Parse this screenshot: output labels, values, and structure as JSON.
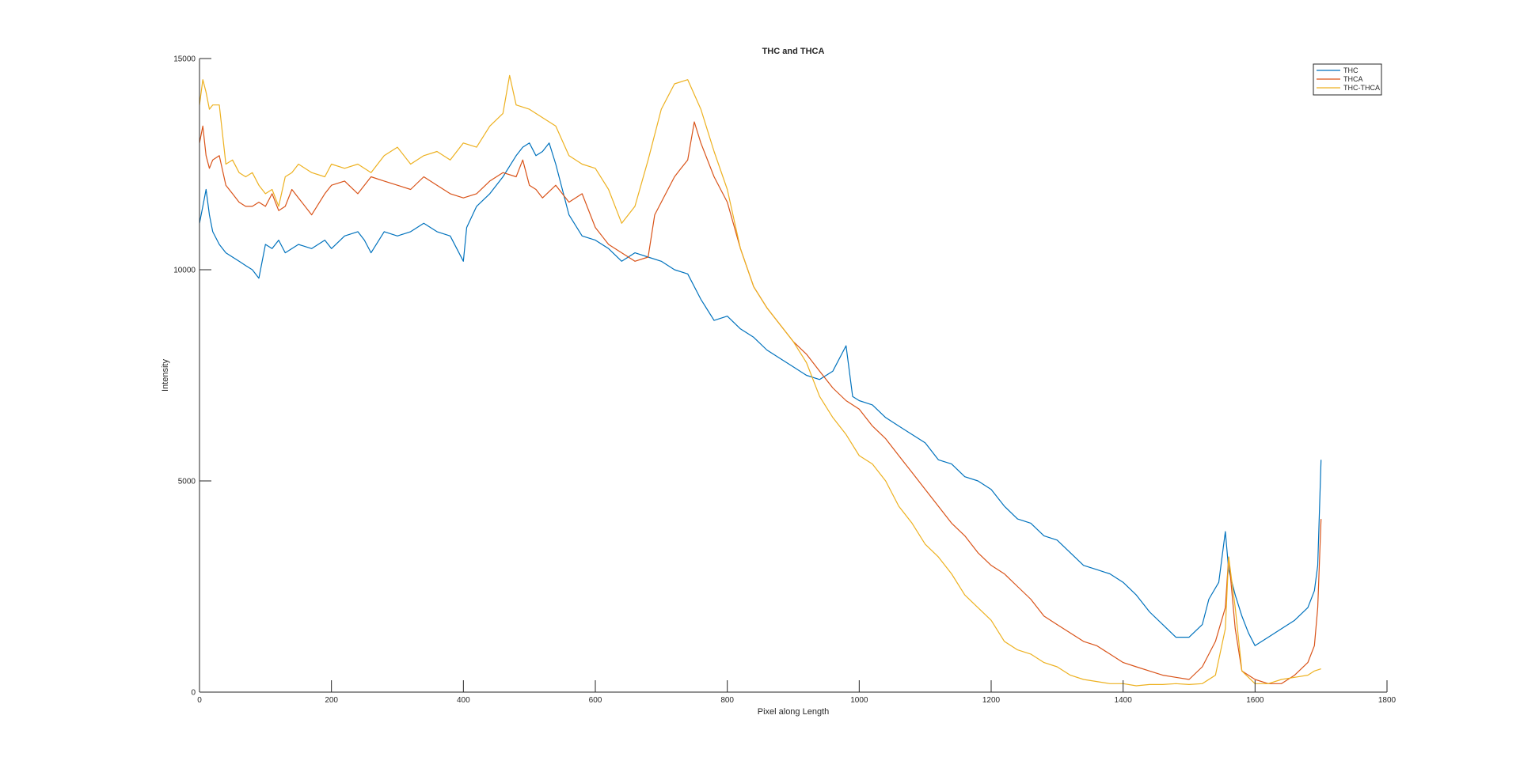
{
  "chart_data": {
    "type": "line",
    "title": "THC and THCA",
    "xlabel": "Pixel along Length",
    "ylabel": "Intensity",
    "xlim": [
      0,
      1800
    ],
    "ylim": [
      0,
      15000
    ],
    "xticks": [
      0,
      200,
      400,
      600,
      800,
      1000,
      1200,
      1400,
      1600,
      1800
    ],
    "yticks": [
      0,
      5000,
      10000,
      15000
    ],
    "grid": false,
    "legend": {
      "position": "top-right"
    },
    "series": [
      {
        "name": "THC",
        "color": "#0072BD",
        "x": [
          0,
          5,
          10,
          15,
          20,
          30,
          40,
          50,
          60,
          70,
          80,
          90,
          100,
          110,
          120,
          130,
          150,
          170,
          190,
          200,
          220,
          240,
          250,
          260,
          280,
          300,
          320,
          340,
          360,
          380,
          400,
          405,
          420,
          440,
          460,
          480,
          490,
          500,
          510,
          520,
          530,
          540,
          560,
          580,
          600,
          620,
          640,
          660,
          680,
          700,
          720,
          740,
          760,
          780,
          800,
          820,
          840,
          860,
          880,
          900,
          920,
          940,
          960,
          980,
          990,
          1000,
          1020,
          1040,
          1060,
          1080,
          1100,
          1120,
          1140,
          1160,
          1180,
          1200,
          1220,
          1240,
          1260,
          1280,
          1300,
          1320,
          1340,
          1360,
          1380,
          1400,
          1420,
          1440,
          1460,
          1480,
          1500,
          1520,
          1530,
          1545,
          1555,
          1560,
          1570,
          1580,
          1590,
          1600,
          1620,
          1640,
          1660,
          1680,
          1690,
          1695,
          1700
        ],
        "y": [
          11100,
          11500,
          11900,
          11300,
          10900,
          10600,
          10400,
          10300,
          10200,
          10100,
          10000,
          9800,
          10600,
          10500,
          10700,
          10400,
          10600,
          10500,
          10700,
          10500,
          10800,
          10900,
          10700,
          10400,
          10900,
          10800,
          10900,
          11100,
          10900,
          10800,
          10200,
          11000,
          11500,
          11800,
          12200,
          12700,
          12900,
          13000,
          12700,
          12800,
          13000,
          12500,
          11300,
          10800,
          10700,
          10500,
          10200,
          10400,
          10300,
          10200,
          10000,
          9900,
          9300,
          8800,
          8900,
          8600,
          8400,
          8100,
          7900,
          7700,
          7500,
          7400,
          7600,
          8200,
          7000,
          6900,
          6800,
          6500,
          6300,
          6100,
          5900,
          5500,
          5400,
          5100,
          5000,
          4800,
          4400,
          4100,
          4000,
          3700,
          3600,
          3300,
          3000,
          2900,
          2800,
          2600,
          2300,
          1900,
          1600,
          1300,
          1300,
          1600,
          2200,
          2600,
          3800,
          2900,
          2300,
          1800,
          1400,
          1100,
          1300,
          1500,
          1700,
          2000,
          2400,
          3000,
          5500
        ]
      },
      {
        "name": "THCA",
        "color": "#D95319",
        "x": [
          0,
          5,
          10,
          15,
          20,
          30,
          40,
          50,
          60,
          70,
          80,
          90,
          100,
          110,
          120,
          130,
          140,
          150,
          170,
          190,
          200,
          220,
          240,
          260,
          280,
          300,
          320,
          340,
          360,
          380,
          400,
          420,
          440,
          460,
          480,
          490,
          500,
          510,
          520,
          540,
          560,
          580,
          600,
          620,
          640,
          660,
          680,
          690,
          700,
          720,
          730,
          740,
          750,
          760,
          780,
          800,
          820,
          840,
          860,
          880,
          900,
          920,
          940,
          960,
          980,
          1000,
          1020,
          1040,
          1060,
          1080,
          1100,
          1120,
          1140,
          1160,
          1180,
          1200,
          1220,
          1240,
          1260,
          1280,
          1300,
          1320,
          1340,
          1360,
          1380,
          1400,
          1420,
          1440,
          1460,
          1480,
          1500,
          1520,
          1540,
          1555,
          1560,
          1570,
          1580,
          1600,
          1620,
          1640,
          1660,
          1680,
          1690,
          1695,
          1700
        ],
        "y": [
          13000,
          13400,
          12700,
          12400,
          12600,
          12700,
          12000,
          11800,
          11600,
          11500,
          11500,
          11600,
          11500,
          11800,
          11400,
          11500,
          11900,
          11700,
          11300,
          11800,
          12000,
          12100,
          11800,
          12200,
          12100,
          12000,
          11900,
          12200,
          12000,
          11800,
          11700,
          11800,
          12100,
          12300,
          12200,
          12600,
          12000,
          11900,
          11700,
          12000,
          11600,
          11800,
          11000,
          10600,
          10400,
          10200,
          10300,
          11300,
          11600,
          12200,
          12400,
          12600,
          13500,
          13000,
          12200,
          11600,
          10500,
          9600,
          9100,
          8700,
          8300,
          8000,
          7600,
          7200,
          6900,
          6700,
          6300,
          6000,
          5600,
          5200,
          4800,
          4400,
          4000,
          3700,
          3300,
          3000,
          2800,
          2500,
          2200,
          1800,
          1600,
          1400,
          1200,
          1100,
          900,
          700,
          600,
          500,
          400,
          350,
          300,
          600,
          1200,
          2000,
          3200,
          1500,
          500,
          300,
          200,
          200,
          400,
          700,
          1100,
          2000,
          4100
        ]
      },
      {
        "name": "THC-THCA",
        "color": "#EDB120",
        "x": [
          0,
          5,
          10,
          15,
          20,
          30,
          40,
          50,
          60,
          70,
          80,
          90,
          100,
          110,
          120,
          130,
          140,
          150,
          170,
          190,
          200,
          220,
          240,
          260,
          280,
          300,
          320,
          340,
          360,
          380,
          400,
          420,
          440,
          460,
          470,
          480,
          500,
          520,
          540,
          560,
          580,
          600,
          620,
          640,
          660,
          680,
          700,
          720,
          740,
          760,
          780,
          800,
          820,
          840,
          860,
          880,
          900,
          920,
          940,
          960,
          980,
          1000,
          1020,
          1040,
          1060,
          1080,
          1100,
          1120,
          1140,
          1160,
          1180,
          1200,
          1220,
          1240,
          1260,
          1280,
          1300,
          1320,
          1340,
          1360,
          1380,
          1400,
          1420,
          1440,
          1460,
          1480,
          1500,
          1520,
          1540,
          1555,
          1560,
          1570,
          1580,
          1600,
          1620,
          1640,
          1660,
          1680,
          1690,
          1700
        ],
        "y": [
          13900,
          14500,
          14200,
          13800,
          13900,
          13900,
          12500,
          12600,
          12300,
          12200,
          12300,
          12000,
          11800,
          11900,
          11500,
          12200,
          12300,
          12500,
          12300,
          12200,
          12500,
          12400,
          12500,
          12300,
          12700,
          12900,
          12500,
          12700,
          12800,
          12600,
          13000,
          12900,
          13400,
          13700,
          14600,
          13900,
          13800,
          13600,
          13400,
          12700,
          12500,
          12400,
          11900,
          11100,
          11500,
          12600,
          13800,
          14400,
          14500,
          13800,
          12800,
          11900,
          10500,
          9600,
          9100,
          8700,
          8300,
          7800,
          7000,
          6500,
          6100,
          5600,
          5400,
          5000,
          4400,
          4000,
          3500,
          3200,
          2800,
          2300,
          2000,
          1700,
          1200,
          1000,
          900,
          700,
          600,
          400,
          300,
          250,
          200,
          200,
          150,
          180,
          180,
          200,
          180,
          200,
          400,
          1500,
          3200,
          2000,
          500,
          200,
          200,
          300,
          350,
          400,
          500,
          550
        ]
      }
    ]
  }
}
